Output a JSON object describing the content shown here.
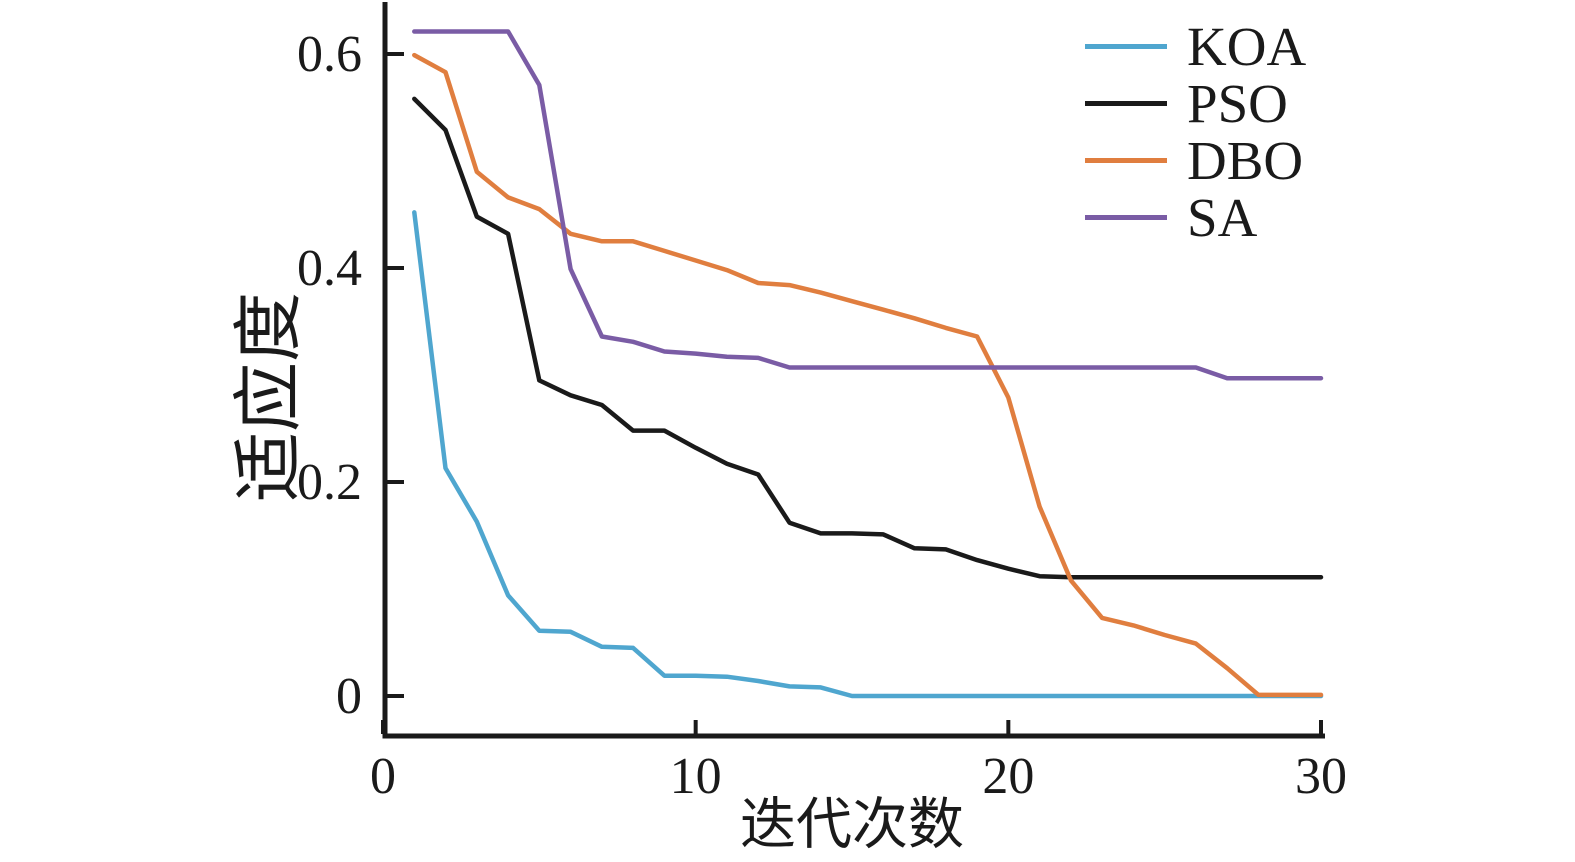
{
  "chart_data": {
    "type": "line",
    "title": "",
    "xlabel": "迭代次数",
    "ylabel": "适应度",
    "xlim": [
      0,
      30.1
    ],
    "ylim": [
      -0.039,
      0.651
    ],
    "grid": false,
    "legend_position": "top-right",
    "x_ticks": [
      0,
      10,
      20,
      30
    ],
    "x_tick_labels": [
      "0",
      "10",
      "20",
      "30"
    ],
    "y_ticks": [
      0,
      0.2,
      0.4,
      0.6
    ],
    "y_tick_labels": [
      "0",
      "0.2",
      "0.4",
      "0.6"
    ],
    "x": [
      1,
      2,
      3,
      4,
      5,
      6,
      7,
      8,
      9,
      10,
      11,
      12,
      13,
      14,
      15,
      16,
      17,
      18,
      19,
      20,
      21,
      22,
      23,
      24,
      25,
      26,
      27,
      28,
      29,
      30
    ],
    "series": [
      {
        "name": "KOA",
        "color": "#4FA6CF",
        "values": [
          0.452,
          0.213,
          0.163,
          0.094,
          0.061,
          0.06,
          0.046,
          0.045,
          0.019,
          0.019,
          0.018,
          0.014,
          0.009,
          0.008,
          0.0,
          0.0,
          0.0,
          0.0,
          0.0,
          0.0,
          0.0,
          0.0,
          0.0,
          0.0,
          0.0,
          0.0,
          0.0,
          0.0,
          0.0,
          0.0
        ]
      },
      {
        "name": "PSO",
        "color": "#1a1a1a",
        "values": [
          0.558,
          0.529,
          0.448,
          0.432,
          0.295,
          0.281,
          0.272,
          0.248,
          0.248,
          0.232,
          0.217,
          0.207,
          0.162,
          0.152,
          0.152,
          0.151,
          0.138,
          0.137,
          0.127,
          0.119,
          0.112,
          0.111,
          0.111,
          0.111,
          0.111,
          0.111,
          0.111,
          0.111,
          0.111,
          0.111
        ]
      },
      {
        "name": "DBO",
        "color": "#E07E3F",
        "values": [
          0.599,
          0.583,
          0.49,
          0.466,
          0.455,
          0.432,
          0.425,
          0.425,
          0.416,
          0.407,
          0.398,
          0.386,
          0.384,
          0.377,
          0.369,
          0.361,
          0.353,
          0.344,
          0.336,
          0.279,
          0.177,
          0.108,
          0.073,
          0.066,
          0.057,
          0.049,
          0.026,
          0.001,
          0.001,
          0.001
        ]
      },
      {
        "name": "SA",
        "color": "#7A5CA5",
        "values": [
          0.621,
          0.621,
          0.621,
          0.621,
          0.571,
          0.399,
          0.336,
          0.331,
          0.322,
          0.32,
          0.317,
          0.316,
          0.307,
          0.307,
          0.307,
          0.307,
          0.307,
          0.307,
          0.307,
          0.307,
          0.307,
          0.307,
          0.307,
          0.307,
          0.307,
          0.307,
          0.297,
          0.297,
          0.297,
          0.297
        ]
      }
    ],
    "axis_color": "#1a1a1a"
  }
}
